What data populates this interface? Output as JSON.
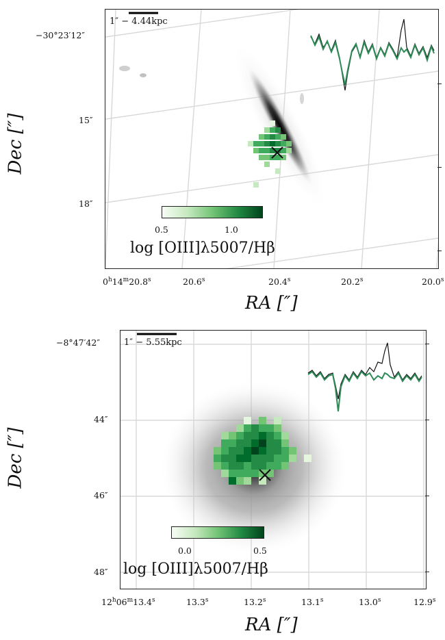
{
  "panels": [
    {
      "scalebar_label": "1″ − 4.44kpc",
      "dec_ticks": [
        "−30°23′12″",
        "15″",
        "18″"
      ],
      "ra_ticks": [
        {
          "main": "0",
          "s1": "h",
          "m": "14",
          "s2": "m",
          "v": "20.8",
          "s3": "s"
        },
        {
          "main": "",
          "s1": "",
          "m": "",
          "s2": "",
          "v": "20.6",
          "s3": "s"
        },
        {
          "main": "",
          "s1": "",
          "m": "",
          "s2": "",
          "v": "20.4",
          "s3": "s"
        },
        {
          "main": "",
          "s1": "",
          "m": "",
          "s2": "",
          "v": "20.2",
          "s3": "s"
        },
        {
          "main": "",
          "s1": "",
          "m": "",
          "s2": "",
          "v": "20.0",
          "s3": "s"
        }
      ],
      "colorbar_ticks": [
        "0.5",
        "1.0"
      ],
      "colorbar_label": "log [OIII]λ5007/Hβ",
      "xlabel": "RA [″]",
      "ylabel": "Dec [″]"
    },
    {
      "scalebar_label": "1″ − 5.55kpc",
      "dec_ticks": [
        "−8°47′42″",
        "44″",
        "46″",
        "48″"
      ],
      "ra_ticks": [
        {
          "main": "12",
          "s1": "h",
          "m": "06",
          "s2": "m",
          "v": "13.4",
          "s3": "s"
        },
        {
          "main": "",
          "s1": "",
          "m": "",
          "s2": "",
          "v": "13.3",
          "s3": "s"
        },
        {
          "main": "",
          "s1": "",
          "m": "",
          "s2": "",
          "v": "13.2",
          "s3": "s"
        },
        {
          "main": "",
          "s1": "",
          "m": "",
          "s2": "",
          "v": "13.1",
          "s3": "s"
        },
        {
          "main": "",
          "s1": "",
          "m": "",
          "s2": "",
          "v": "13.0",
          "s3": "s"
        },
        {
          "main": "",
          "s1": "",
          "m": "",
          "s2": "",
          "v": "12.9",
          "s3": "s"
        }
      ],
      "colorbar_ticks": [
        "0.0",
        "0.5"
      ],
      "colorbar_label": "log [OIII]λ5007/Hβ",
      "xlabel": "RA [″]",
      "ylabel": "Dec [″]"
    }
  ],
  "colors": {
    "model_spectrum": "#2e8b57",
    "data_spectrum": "#111111",
    "grid": "#d8d8d8",
    "marker": "#111111"
  }
}
